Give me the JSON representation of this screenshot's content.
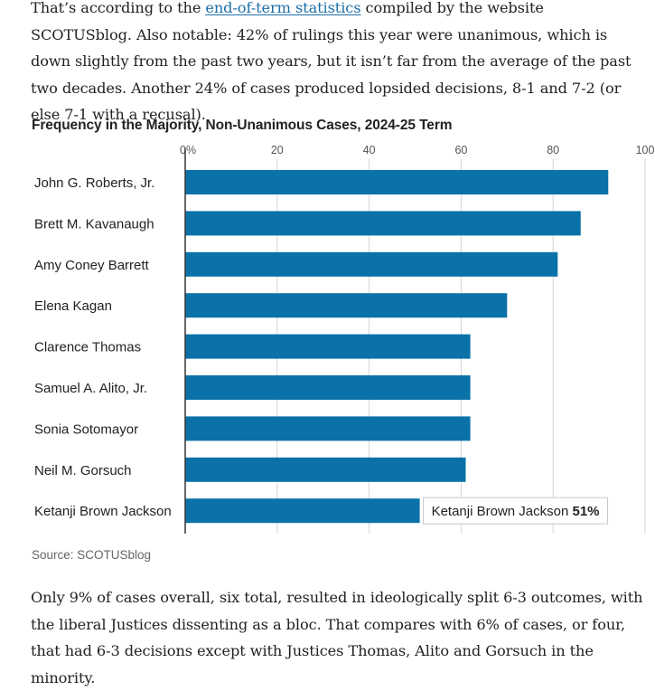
{
  "article": {
    "para1_before_link": "That’s according to the ",
    "para1_link": "end-of-term statistics",
    "para1_after_link": " compiled by the website SCOTUSblog. Also notable: 42% of rulings this year were unanimous, which is down slightly from the past two years, but it isn’t far from the average of the past two decades. Another 24% of cases produced lopsided decisions, 8-1 and 7-2 (or else 7-1 with a recusal).",
    "para2": "Only 9% of cases overall, six total, resulted in ideologically split 6-3 outcomes, with the liberal Justices dissenting as a bloc. That compares with 6% of cases, or four, that had 6-3 decisions except with Justices Thomas, Alito and Gorsuch in the minority."
  },
  "colors": {
    "bar": "#0a72a8",
    "axis": "#333333",
    "grid": "#d4d4d4",
    "tick_text": "#555555",
    "label_text": "#222222",
    "link": "#1c6fa8"
  },
  "chart_data": {
    "type": "bar",
    "orientation": "horizontal",
    "title": "Frequency in the Majority, Non-Unanimous Cases, 2024-25 Term",
    "xlim": [
      0,
      100
    ],
    "ticks": [
      0,
      20,
      40,
      60,
      80,
      100
    ],
    "tick_labels": [
      "0%",
      "20",
      "40",
      "60",
      "80",
      "100"
    ],
    "grid": true,
    "categories": [
      "John G. Roberts, Jr.",
      "Brett M. Kavanaugh",
      "Amy Coney Barrett",
      "Elena Kagan",
      "Clarence Thomas",
      "Samuel A. Alito, Jr.",
      "Sonia Sotomayor",
      "Neil M. Gorsuch",
      "Ketanji Brown Jackson"
    ],
    "values": [
      92,
      86,
      81,
      70,
      62,
      62,
      62,
      61,
      51
    ],
    "annotation": {
      "name": "Ketanji Brown Jackson",
      "value_label": "51%"
    },
    "source": "Source: SCOTUSblog"
  }
}
